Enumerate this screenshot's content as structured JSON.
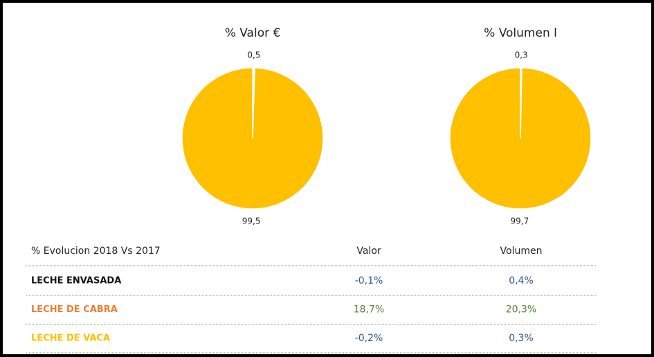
{
  "chart_data": [
    {
      "type": "pie",
      "title": "% Valor €",
      "values": [
        0.5,
        99.5
      ],
      "value_labels": [
        "0,5",
        "99,5"
      ],
      "colors": [
        "#ffffff",
        "#ffc000"
      ]
    },
    {
      "type": "pie",
      "title": "% Volumen l",
      "values": [
        0.3,
        99.7
      ],
      "value_labels": [
        "0,3",
        "99,7"
      ],
      "colors": [
        "#ffffff",
        "#ffc000"
      ]
    }
  ],
  "table": {
    "header": [
      "% Evolucion 2018 Vs 2017",
      "Valor",
      "Volumen"
    ],
    "rows": [
      [
        "LECHE ENVASADA",
        "-0,1%",
        "0,4%"
      ],
      [
        "LECHE DE CABRA",
        "18,7%",
        "20,3%"
      ],
      [
        "LECHE DE VACA",
        "-0,2%",
        "0,3%"
      ]
    ]
  }
}
